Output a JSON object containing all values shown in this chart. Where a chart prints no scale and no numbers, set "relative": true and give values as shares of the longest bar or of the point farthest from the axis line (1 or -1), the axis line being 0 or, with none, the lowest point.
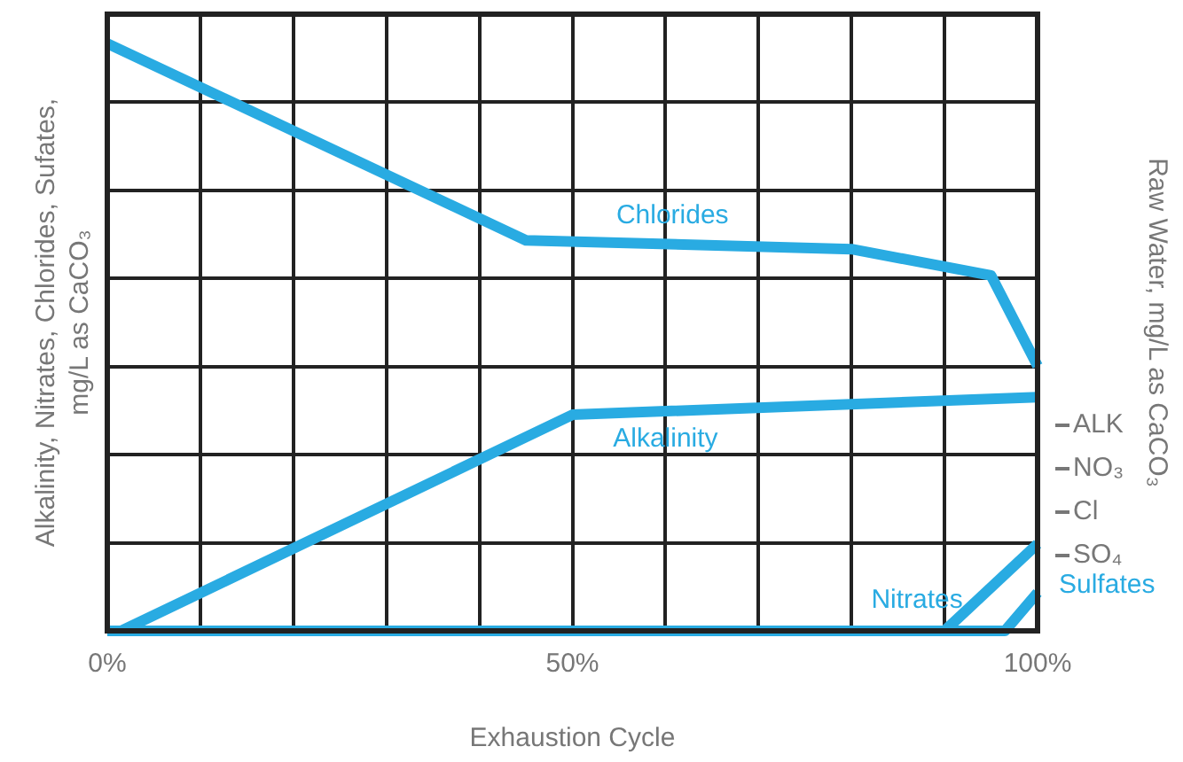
{
  "chart_data": {
    "type": "line",
    "relative": true,
    "xlabel": "Exhaustion Cycle",
    "ylabel": "Alkalinity, Nitrates, Chlorides, Sufates,\nmg/L as CaCO₃",
    "y2label": "Raw Water, mg/L as CaCO₃",
    "xlim": [
      0,
      100
    ],
    "xticks": [
      {
        "value": 0,
        "label": "0%"
      },
      {
        "value": 10,
        "label": null
      },
      {
        "value": 20,
        "label": null
      },
      {
        "value": 30,
        "label": null
      },
      {
        "value": 40,
        "label": null
      },
      {
        "value": 50,
        "label": "50%"
      },
      {
        "value": 60,
        "label": null
      },
      {
        "value": 70,
        "label": null
      },
      {
        "value": 80,
        "label": null
      },
      {
        "value": 90,
        "label": null
      },
      {
        "value": 100,
        "label": "100%"
      }
    ],
    "grid": true,
    "legend": false,
    "marker": "none",
    "line_style": "solid",
    "series": [
      {
        "name": "Chlorides",
        "color": "#29abe2",
        "x": [
          0,
          45,
          80,
          95,
          100
        ],
        "values": [
          1,
          0.665,
          0.65,
          0.605,
          0.451
        ]
      },
      {
        "name": "Alkalinity",
        "color": "#29abe2",
        "x": [
          1.5,
          50,
          100
        ],
        "values": [
          0,
          0.368,
          0.398
        ]
      },
      {
        "name": "Nitrates",
        "color": "#29abe2",
        "x": [
          90,
          100
        ],
        "values": [
          0,
          0.148
        ]
      },
      {
        "name": "Sulfates",
        "color": "#29abe2",
        "x": [
          0,
          96.5,
          100
        ],
        "values": [
          0,
          0,
          0.065
        ]
      }
    ],
    "annotations": [
      "ALK",
      "NO₃",
      "Cl",
      "SO₄"
    ]
  }
}
